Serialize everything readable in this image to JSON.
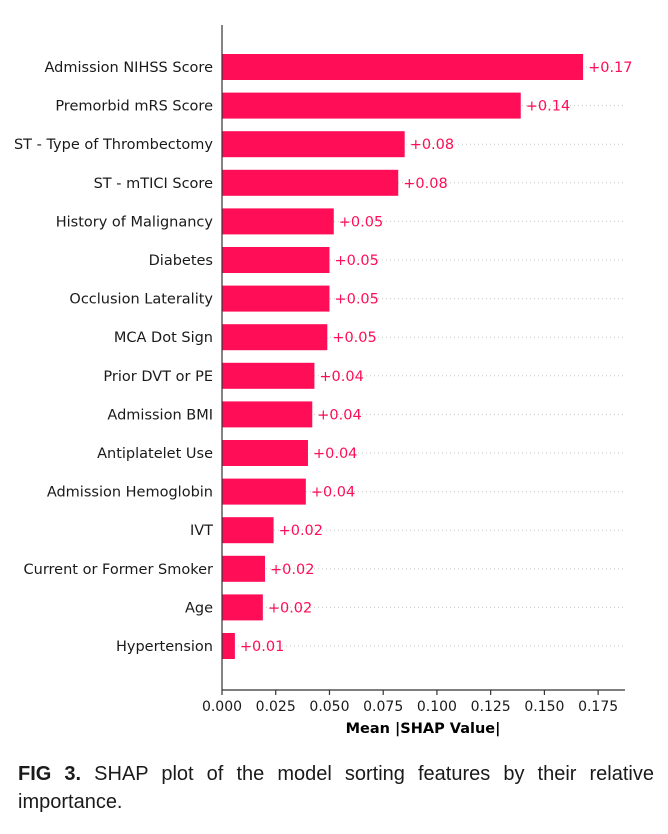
{
  "chart_data": {
    "type": "bar",
    "orientation": "horizontal",
    "categories": [
      "Admission NIHSS Score",
      "Premorbid mRS Score",
      "ST - Type of Thrombectomy",
      "ST - mTICI Score",
      "History of Malignancy",
      "Diabetes",
      "Occlusion Laterality",
      "MCA Dot Sign",
      "Prior DVT or PE",
      "Admission BMI",
      "Antiplatelet Use",
      "Admission Hemoglobin",
      "IVT",
      "Current or Former Smoker",
      "Age",
      "Hypertension"
    ],
    "values": [
      0.168,
      0.139,
      0.085,
      0.082,
      0.052,
      0.05,
      0.05,
      0.049,
      0.043,
      0.042,
      0.04,
      0.039,
      0.024,
      0.02,
      0.019,
      0.006
    ],
    "value_labels": [
      "+0.17",
      "+0.14",
      "+0.08",
      "+0.08",
      "+0.05",
      "+0.05",
      "+0.05",
      "+0.05",
      "+0.04",
      "+0.04",
      "+0.04",
      "+0.04",
      "+0.02",
      "+0.02",
      "+0.02",
      "+0.01"
    ],
    "xlabel": "Mean |SHAP Value|",
    "xlim": [
      0,
      0.1875
    ],
    "xticks": [
      0.0,
      0.025,
      0.05,
      0.075,
      0.1,
      0.125,
      0.15,
      0.175
    ],
    "xtick_labels": [
      "0.000",
      "0.025",
      "0.050",
      "0.075",
      "0.100",
      "0.125",
      "0.150",
      "0.175"
    ],
    "bar_color": "#ff0d57",
    "value_label_color": "#ff0d57",
    "grid": "dotted horizontal guide lines per row"
  },
  "caption": {
    "label": "FIG 3.",
    "text": " SHAP plot of the model sorting features by their relative importance."
  }
}
